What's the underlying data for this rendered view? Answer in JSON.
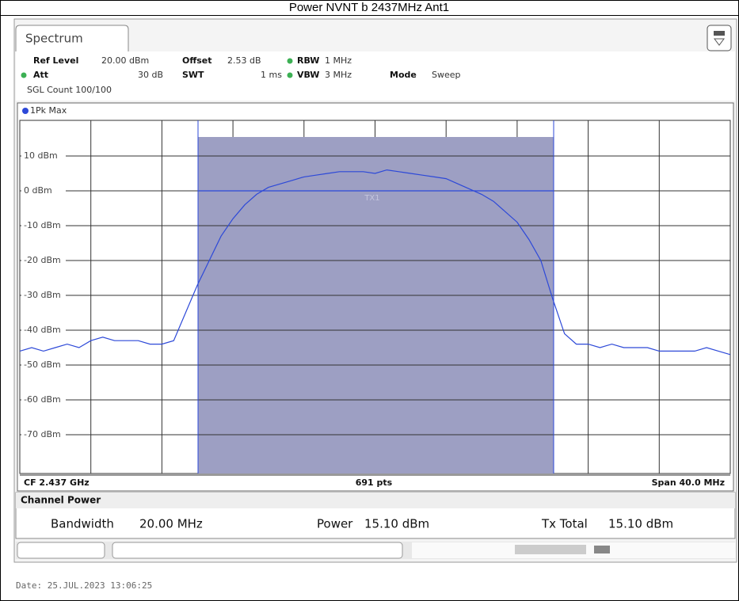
{
  "title": "Power NVNT b 2437MHz Ant1",
  "tab": "Spectrum",
  "settings": {
    "ref_level": {
      "label": "Ref Level",
      "value": "20.00 dBm"
    },
    "offset": {
      "label": "Offset",
      "value": "2.53 dB"
    },
    "rbw": {
      "label": "RBW",
      "value": "1 MHz"
    },
    "att": {
      "label": "Att",
      "value": "30 dB"
    },
    "swt": {
      "label": "SWT",
      "value": "1 ms"
    },
    "vbw": {
      "label": "VBW",
      "value": "3 MHz"
    },
    "mode": {
      "label": "Mode",
      "value": "Sweep"
    },
    "sgl_count": "SGL Count 100/100"
  },
  "trace_label": "1Pk Max",
  "channel_label": "TX1",
  "footer": {
    "center": "CF 2.437 GHz",
    "points": "691 pts",
    "span": "Span 40.0 MHz"
  },
  "channel_power": {
    "title": "Channel Power",
    "results": [
      {
        "label": "Bandwidth",
        "value": "20.00 MHz"
      },
      {
        "label": "Power",
        "value": "15.10 dBm"
      },
      {
        "label": "Tx Total",
        "value": "15.10 dBm"
      }
    ]
  },
  "date": "Date: 25.JUL.2023  13:06:25",
  "chart_data": {
    "type": "line",
    "color": "#2d49d8",
    "grid": true,
    "ylim": [
      -80,
      20
    ],
    "yticks": [
      {
        "value": 10,
        "label": "10 dBm"
      },
      {
        "value": 0,
        "label": "0 dBm"
      },
      {
        "value": -10,
        "label": "-10 dBm"
      },
      {
        "value": -20,
        "label": "-20 dBm"
      },
      {
        "value": -30,
        "label": "-30 dBm"
      },
      {
        "value": -40,
        "label": "-40 dBm"
      },
      {
        "value": -50,
        "label": "-50 dBm"
      },
      {
        "value": -60,
        "label": "-60 dBm"
      },
      {
        "value": -70,
        "label": "-70 dBm"
      }
    ],
    "values": [
      -46,
      -45,
      -46,
      -45,
      -44,
      -45,
      -43,
      -42,
      -43,
      -43,
      -43,
      -44,
      -44,
      -43,
      -35,
      -27,
      -20,
      -13,
      -8,
      -4,
      -1,
      1,
      2,
      3,
      4,
      4.5,
      5,
      5.5,
      5.5,
      5.5,
      5,
      6,
      5.5,
      5,
      4.5,
      4,
      3.5,
      2,
      0.5,
      -1,
      -3,
      -6,
      -9,
      -14,
      -20,
      -31,
      -41,
      -44,
      -44,
      -45,
      -44,
      -45,
      -45,
      -45,
      -46,
      -46,
      -46,
      -46,
      -45,
      -46,
      -47
    ]
  }
}
